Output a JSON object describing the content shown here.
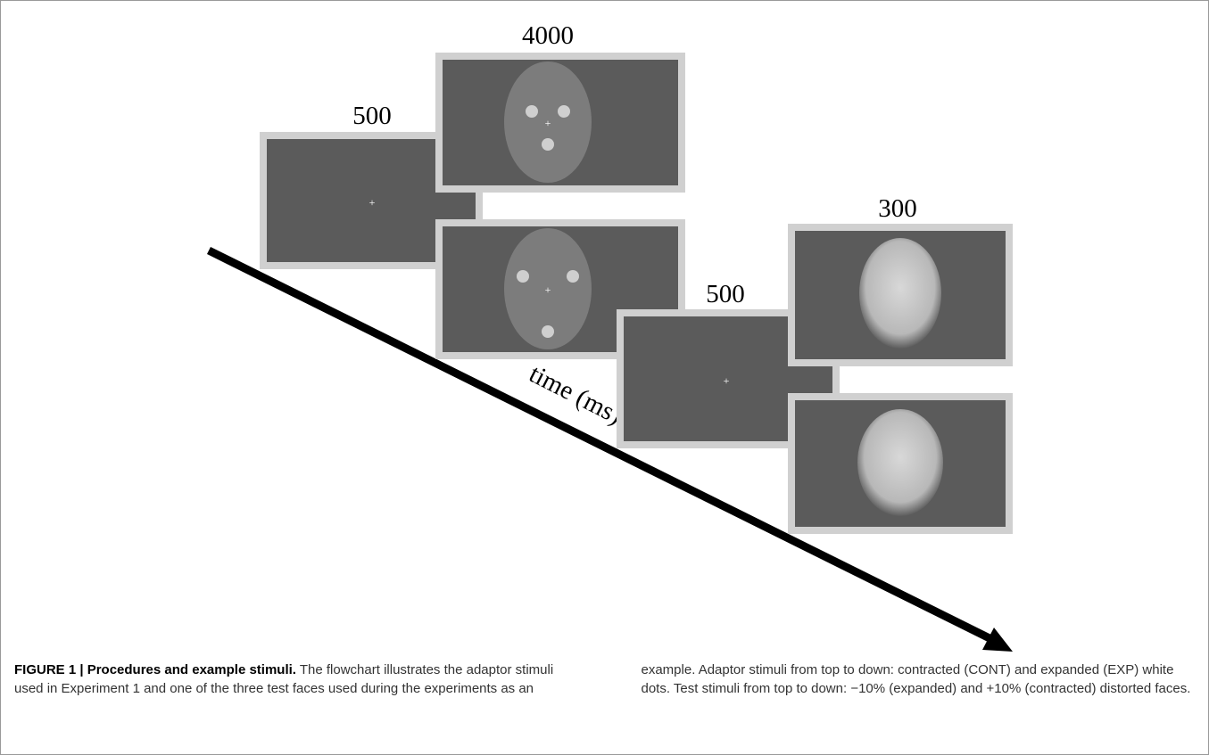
{
  "labels": {
    "fixation_1": "500",
    "adaptor": "4000",
    "fixation_2": "500",
    "test": "300",
    "axis": "time (ms)"
  },
  "caption": {
    "label": "FIGURE 1 | Procedures and example stimuli.",
    "text": " The flowchart illustrates the adaptor stimuli used in Experiment 1 and one of the three test faces used during the experiments as an example. Adaptor stimuli from top to down: contracted (CONT) and expanded (EXP) white dots. Test stimuli from top to down: −10% (expanded) and +10% (contracted) distorted faces."
  }
}
